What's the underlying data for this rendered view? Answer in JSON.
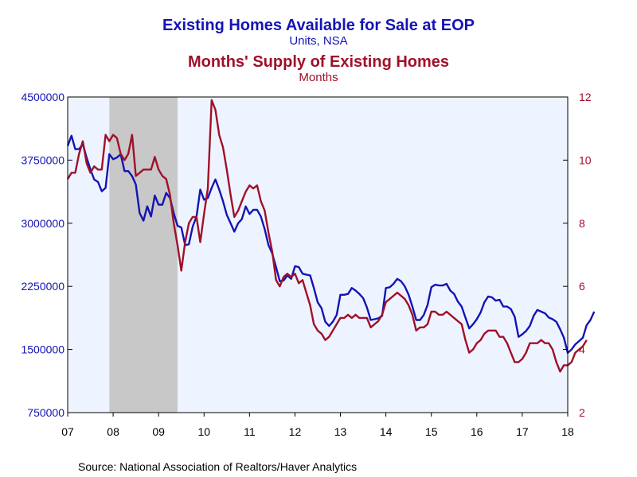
{
  "chart_data": {
    "type": "line",
    "title": "Existing Homes Available for Sale at EOP",
    "title_units": "Units, NSA",
    "title2": "Months' Supply of Existing Homes",
    "title2_units": "Months",
    "source": "Source:  National Association of Realtors/Haver Analytics",
    "grid": false,
    "x_start": "2007-01",
    "x_end": "2018-01",
    "x_ticks": [
      "07",
      "08",
      "09",
      "10",
      "11",
      "12",
      "13",
      "14",
      "15",
      "16",
      "17",
      "18"
    ],
    "recession": {
      "start": "2007-12",
      "end": "2009-06",
      "color": "#c8c8c8"
    },
    "y_left": {
      "ticks": [
        "4500000",
        "3750000",
        "3000000",
        "2250000",
        "1500000",
        "750000"
      ],
      "range": [
        750000,
        4500000
      ],
      "color": "#1414b4"
    },
    "y_right": {
      "ticks": [
        "12",
        "10",
        "8",
        "6",
        "4",
        "2"
      ],
      "range": [
        2,
        12
      ],
      "color": "#a0102a"
    },
    "series": [
      {
        "name": "Existing Homes Available for Sale at EOP",
        "axis": "left",
        "color": "#1414b4",
        "start": "2007-01",
        "values": [
          3920000,
          4040000,
          3880000,
          3880000,
          3940000,
          3780000,
          3640000,
          3520000,
          3490000,
          3380000,
          3420000,
          3820000,
          3760000,
          3780000,
          3820000,
          3620000,
          3620000,
          3560000,
          3460000,
          3120000,
          3030000,
          3200000,
          3080000,
          3330000,
          3220000,
          3220000,
          3360000,
          3300000,
          3120000,
          2970000,
          2950000,
          2740000,
          2750000,
          2960000,
          3080000,
          3400000,
          3280000,
          3300000,
          3420000,
          3520000,
          3400000,
          3260000,
          3100000,
          3000000,
          2900000,
          3000000,
          3050000,
          3200000,
          3110000,
          3160000,
          3160000,
          3080000,
          2930000,
          2740000,
          2640000,
          2480000,
          2310000,
          2320000,
          2380000,
          2340000,
          2490000,
          2480000,
          2400000,
          2390000,
          2380000,
          2230000,
          2060000,
          1990000,
          1830000,
          1780000,
          1830000,
          1910000,
          2150000,
          2150000,
          2160000,
          2230000,
          2200000,
          2160000,
          2110000,
          2000000,
          1850000,
          1860000,
          1870000,
          1900000,
          2230000,
          2240000,
          2280000,
          2340000,
          2310000,
          2250000,
          2150000,
          2010000,
          1850000,
          1850000,
          1910000,
          2030000,
          2240000,
          2270000,
          2260000,
          2260000,
          2280000,
          2200000,
          2160000,
          2070000,
          2010000,
          1880000,
          1750000,
          1800000,
          1860000,
          1940000,
          2060000,
          2130000,
          2120000,
          2080000,
          2090000,
          2010000,
          2010000,
          1980000,
          1890000,
          1650000,
          1680000,
          1720000,
          1780000,
          1900000,
          1970000,
          1950000,
          1930000,
          1880000,
          1860000,
          1830000,
          1740000,
          1640000,
          1460000,
          1500000,
          1560000,
          1600000,
          1640000,
          1790000,
          1850000,
          1950000
        ]
      },
      {
        "name": "Months' Supply of Existing Homes",
        "axis": "right",
        "color": "#a0102a",
        "start": "2007-01",
        "values": [
          9.4,
          9.6,
          9.6,
          10.2,
          10.6,
          9.9,
          9.6,
          9.8,
          9.7,
          9.7,
          10.8,
          10.6,
          10.8,
          10.7,
          10.2,
          10.0,
          10.2,
          10.8,
          9.5,
          9.6,
          9.7,
          9.7,
          9.7,
          10.1,
          9.7,
          9.5,
          9.4,
          8.9,
          8.0,
          7.3,
          6.5,
          7.4,
          8.0,
          8.2,
          8.2,
          7.4,
          8.3,
          9.1,
          11.9,
          11.6,
          10.8,
          10.4,
          9.7,
          8.9,
          8.2,
          8.4,
          8.7,
          9.0,
          9.2,
          9.1,
          9.2,
          8.7,
          8.4,
          7.7,
          7.1,
          6.2,
          6.0,
          6.3,
          6.4,
          6.3,
          6.4,
          6.1,
          6.2,
          5.8,
          5.4,
          4.8,
          4.6,
          4.5,
          4.3,
          4.4,
          4.6,
          4.8,
          5.0,
          5.0,
          5.1,
          5.0,
          5.1,
          5.0,
          5.0,
          5.0,
          4.7,
          4.8,
          4.9,
          5.1,
          5.5,
          5.6,
          5.7,
          5.8,
          5.7,
          5.6,
          5.4,
          5.1,
          4.6,
          4.7,
          4.7,
          4.8,
          5.2,
          5.2,
          5.1,
          5.1,
          5.2,
          5.1,
          5.0,
          4.9,
          4.8,
          4.3,
          3.9,
          4.0,
          4.2,
          4.3,
          4.5,
          4.6,
          4.6,
          4.6,
          4.4,
          4.4,
          4.2,
          3.9,
          3.6,
          3.6,
          3.7,
          3.9,
          4.2,
          4.2,
          4.2,
          4.3,
          4.2,
          4.2,
          4.0,
          3.6,
          3.3,
          3.5,
          3.5,
          3.6,
          3.9,
          4.0,
          4.1,
          4.3
        ]
      }
    ]
  }
}
